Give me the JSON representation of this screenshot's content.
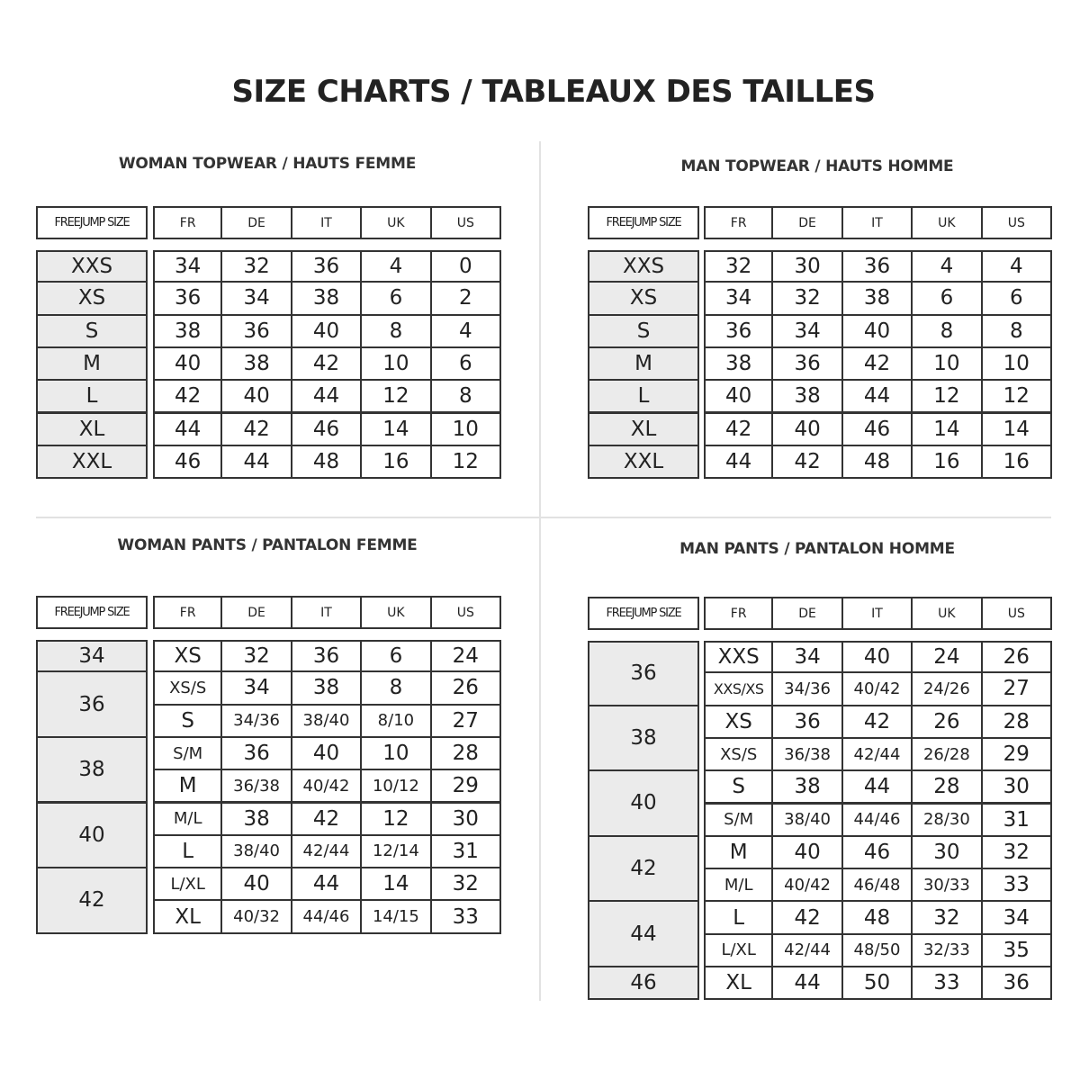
{
  "title": "SIZE CHARTS / TABLEAUX DES TAILLES",
  "sections": [
    {
      "id": "woman-topwear",
      "title": "WOMAN TOPWEAR / HAUTS FEMME",
      "size_header": "FREEJUMP SIZE",
      "columns": [
        "FR",
        "DE",
        "IT",
        "UK",
        "US"
      ],
      "groups": [
        {
          "size": "XXS",
          "span": 1
        },
        {
          "size": "XS",
          "span": 1
        },
        {
          "size": "S",
          "span": 1
        },
        {
          "size": "M",
          "span": 1
        },
        {
          "size": "L",
          "span": 1
        },
        {
          "size": "XL",
          "span": 1
        },
        {
          "size": "XXL",
          "span": 1
        }
      ],
      "rows": [
        [
          "34",
          "32",
          "36",
          "4",
          "0"
        ],
        [
          "36",
          "34",
          "38",
          "6",
          "2"
        ],
        [
          "38",
          "36",
          "40",
          "8",
          "4"
        ],
        [
          "40",
          "38",
          "42",
          "10",
          "6"
        ],
        [
          "42",
          "40",
          "44",
          "12",
          "8"
        ],
        [
          "44",
          "42",
          "46",
          "14",
          "10"
        ],
        [
          "46",
          "44",
          "48",
          "16",
          "12"
        ]
      ]
    },
    {
      "id": "man-topwear",
      "title": "MAN TOPWEAR / HAUTS HOMME",
      "size_header": "FREEJUMP SIZE",
      "columns": [
        "FR",
        "DE",
        "IT",
        "UK",
        "US"
      ],
      "groups": [
        {
          "size": "XXS",
          "span": 1
        },
        {
          "size": "XS",
          "span": 1
        },
        {
          "size": "S",
          "span": 1
        },
        {
          "size": "M",
          "span": 1
        },
        {
          "size": "L",
          "span": 1
        },
        {
          "size": "XL",
          "span": 1
        },
        {
          "size": "XXL",
          "span": 1
        }
      ],
      "rows": [
        [
          "32",
          "30",
          "36",
          "4",
          "4"
        ],
        [
          "34",
          "32",
          "38",
          "6",
          "6"
        ],
        [
          "36",
          "34",
          "40",
          "8",
          "8"
        ],
        [
          "38",
          "36",
          "42",
          "10",
          "10"
        ],
        [
          "40",
          "38",
          "44",
          "12",
          "12"
        ],
        [
          "42",
          "40",
          "46",
          "14",
          "14"
        ],
        [
          "44",
          "42",
          "48",
          "16",
          "16"
        ]
      ]
    },
    {
      "id": "woman-pants",
      "title": "WOMAN PANTS / PANTALON FEMME",
      "size_header": "FREEJUMP SIZE",
      "columns": [
        "FR",
        "DE",
        "IT",
        "UK",
        "US"
      ],
      "groups": [
        {
          "size": "34",
          "span": 1
        },
        {
          "size": "36",
          "span": 2
        },
        {
          "size": "38",
          "span": 2
        },
        {
          "size": "40",
          "span": 2
        },
        {
          "size": "42",
          "span": 2
        }
      ],
      "rows": [
        [
          "XS",
          "32",
          "36",
          "6",
          "24"
        ],
        [
          "XS/S",
          "34",
          "38",
          "8",
          "26"
        ],
        [
          "S",
          "34/36",
          "38/40",
          "8/10",
          "27"
        ],
        [
          "S/M",
          "36",
          "40",
          "10",
          "28"
        ],
        [
          "M",
          "36/38",
          "40/42",
          "10/12",
          "29"
        ],
        [
          "M/L",
          "38",
          "42",
          "12",
          "30"
        ],
        [
          "L",
          "38/40",
          "42/44",
          "12/14",
          "31"
        ],
        [
          "L/XL",
          "40",
          "44",
          "14",
          "32"
        ],
        [
          "XL",
          "40/32",
          "44/46",
          "14/15",
          "33"
        ]
      ]
    },
    {
      "id": "man-pants",
      "title": "MAN PANTS / PANTALON HOMME",
      "size_header": "FREEJUMP SIZE",
      "columns": [
        "FR",
        "DE",
        "IT",
        "UK",
        "US"
      ],
      "groups": [
        {
          "size": "36",
          "span": 2
        },
        {
          "size": "38",
          "span": 2
        },
        {
          "size": "40",
          "span": 2
        },
        {
          "size": "42",
          "span": 2
        },
        {
          "size": "44",
          "span": 2
        },
        {
          "size": "46",
          "span": 1
        }
      ],
      "rows": [
        [
          "XXS",
          "34",
          "40",
          "24",
          "26"
        ],
        [
          "XXS/XS",
          "34/36",
          "40/42",
          "24/26",
          "27"
        ],
        [
          "XS",
          "36",
          "42",
          "26",
          "28"
        ],
        [
          "XS/S",
          "36/38",
          "42/44",
          "26/28",
          "29"
        ],
        [
          "S",
          "38",
          "44",
          "28",
          "30"
        ],
        [
          "S/M",
          "38/40",
          "44/46",
          "28/30",
          "31"
        ],
        [
          "M",
          "40",
          "46",
          "30",
          "32"
        ],
        [
          "M/L",
          "40/42",
          "46/48",
          "30/33",
          "33"
        ],
        [
          "L",
          "42",
          "48",
          "32",
          "34"
        ],
        [
          "L/XL",
          "42/44",
          "48/50",
          "32/33",
          "35"
        ],
        [
          "XL",
          "44",
          "50",
          "33",
          "36"
        ]
      ]
    }
  ]
}
